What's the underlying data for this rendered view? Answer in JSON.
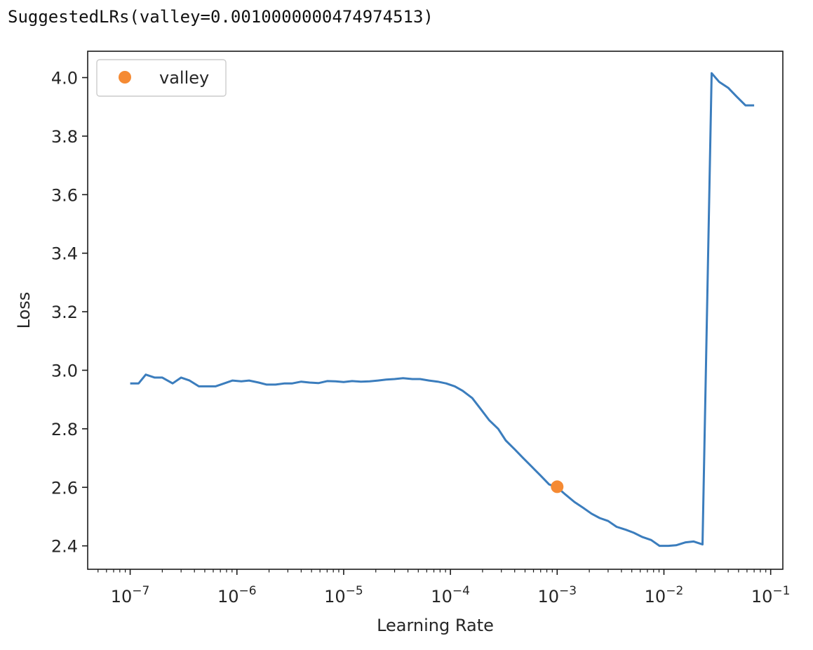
{
  "output": {
    "text": "SuggestedLRs(valley=0.0010000000474974513)"
  },
  "colors": {
    "line": "#3b7dbd",
    "marker": "#f58a33",
    "axes": "#1a1a1a",
    "text": "#262626",
    "legend_border": "#cccccc"
  },
  "chart_data": {
    "type": "line",
    "xlabel": "Learning Rate",
    "ylabel": "Loss",
    "xscale": "log",
    "xlim": [
      4e-08,
      0.13
    ],
    "ylim": [
      2.32,
      4.09
    ],
    "grid": false,
    "legend": {
      "placement": "top-left",
      "entries": [
        {
          "label": "valley",
          "marker": "circle"
        }
      ]
    },
    "xticks": [
      {
        "value": 1e-07,
        "base": "10",
        "exp": "−7"
      },
      {
        "value": 1e-06,
        "base": "10",
        "exp": "−6"
      },
      {
        "value": 1e-05,
        "base": "10",
        "exp": "−5"
      },
      {
        "value": 0.0001,
        "base": "10",
        "exp": "−4"
      },
      {
        "value": 0.001,
        "base": "10",
        "exp": "−3"
      },
      {
        "value": 0.01,
        "base": "10",
        "exp": "−2"
      },
      {
        "value": 0.1,
        "base": "10",
        "exp": "−1"
      }
    ],
    "yticks": [
      "2.4",
      "2.6",
      "2.8",
      "3.0",
      "3.2",
      "3.4",
      "3.6",
      "3.8",
      "4.0"
    ],
    "series": [
      {
        "x": [
          1e-07,
          1.2e-07,
          1.4e-07,
          1.7e-07,
          2e-07,
          2.5e-07,
          3e-07,
          3.6e-07,
          4.4e-07,
          5.3e-07,
          6.3e-07,
          7.6e-07,
          9.1e-07,
          1.1e-06,
          1.3e-06,
          1.6e-06,
          1.9e-06,
          2.3e-06,
          2.8e-06,
          3.3e-06,
          4e-06,
          4.8e-06,
          5.8e-06,
          7e-06,
          8.4e-06,
          1e-05,
          1.2e-05,
          1.45e-05,
          1.75e-05,
          2.1e-05,
          2.5e-05,
          3e-05,
          3.6e-05,
          4.4e-05,
          5.2e-05,
          6.3e-05,
          7.6e-05,
          9.1e-05,
          0.00011,
          0.00013,
          0.00016,
          0.00019,
          0.00023,
          0.00028,
          0.00033,
          0.0004,
          0.00048,
          0.00058,
          0.0007,
          0.00084,
          0.001,
          0.0012,
          0.00145,
          0.00175,
          0.0021,
          0.0025,
          0.003,
          0.0036,
          0.0044,
          0.0052,
          0.0063,
          0.0076,
          0.0091,
          0.011,
          0.013,
          0.016,
          0.019,
          0.023,
          0.028,
          0.033,
          0.04,
          0.048,
          0.058,
          0.07
        ],
        "y": [
          2.955,
          2.955,
          2.985,
          2.975,
          2.975,
          2.955,
          2.975,
          2.965,
          2.945,
          2.945,
          2.945,
          2.955,
          2.965,
          2.962,
          2.965,
          2.958,
          2.951,
          2.951,
          2.955,
          2.955,
          2.961,
          2.958,
          2.956,
          2.963,
          2.962,
          2.96,
          2.963,
          2.961,
          2.962,
          2.965,
          2.968,
          2.97,
          2.973,
          2.97,
          2.97,
          2.965,
          2.961,
          2.955,
          2.945,
          2.93,
          2.905,
          2.87,
          2.83,
          2.8,
          2.76,
          2.73,
          2.7,
          2.67,
          2.64,
          2.61,
          2.6,
          2.575,
          2.55,
          2.53,
          2.51,
          2.495,
          2.485,
          2.465,
          2.455,
          2.445,
          2.43,
          2.42,
          2.4,
          2.4,
          2.402,
          2.412,
          2.415,
          2.405,
          4.015,
          3.985,
          3.965,
          3.935,
          3.905,
          3.905
        ]
      }
    ],
    "markers": [
      {
        "label": "valley",
        "x": 0.001,
        "y": 2.602
      }
    ]
  }
}
